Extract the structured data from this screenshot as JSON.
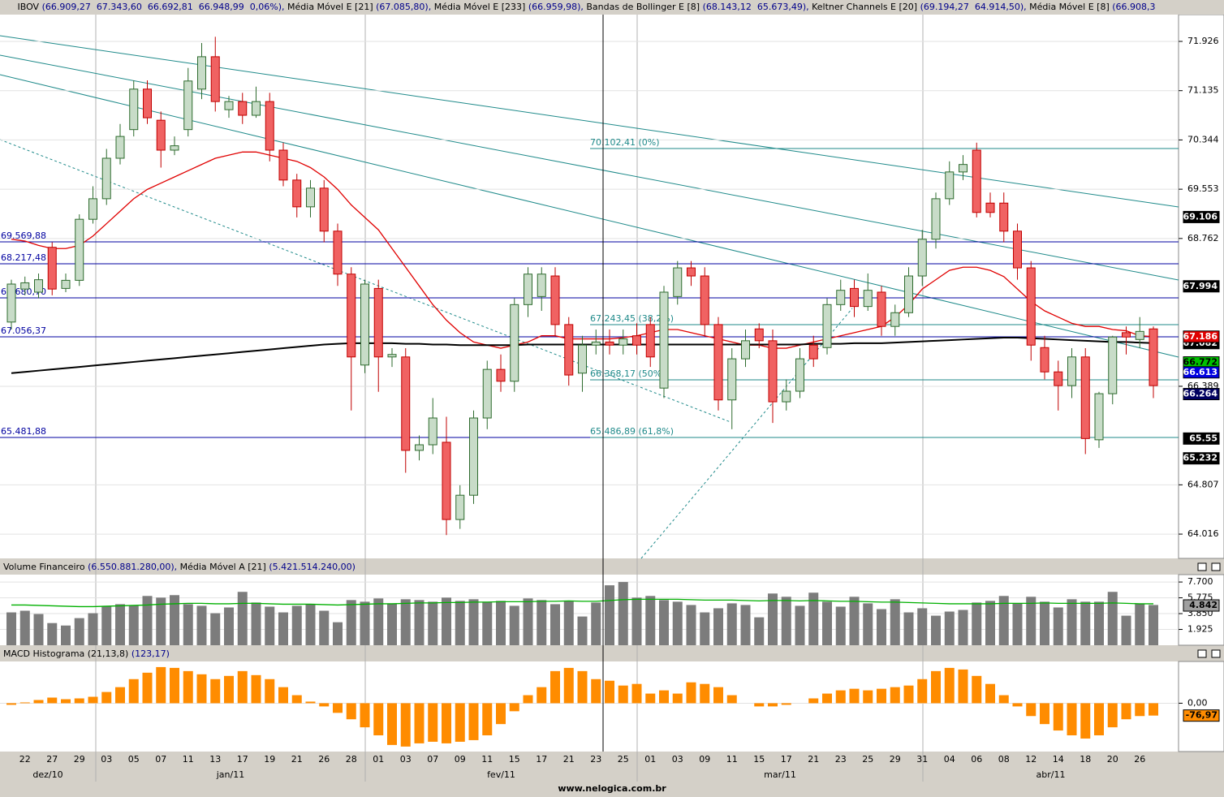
{
  "header": {
    "items": [
      {
        "name": "IBOV",
        "values": "(66.909,27  67.343,60  66.692,81  66.948,99  0,06%),"
      },
      {
        "name": "Média Móvel E [21]",
        "values": "(67.085,80),"
      },
      {
        "name": "Média Móvel E [233]",
        "values": "(66.959,98),"
      },
      {
        "name": "Bandas de Bollinger E [8]",
        "values": "(68.143,12  65.673,49),"
      },
      {
        "name": "Keltner Channels E [20]",
        "values": "(69.194,27  64.914,50),"
      },
      {
        "name": "Média Móvel E [8]",
        "values": "(66.908,3"
      }
    ],
    "footer": "www.nelogica.com.br"
  },
  "chart_data": [
    {
      "type": "candlestick",
      "up_color": "#c8dcc8",
      "down_color": "#f06262",
      "ylim": [
        63.626,
        72.356
      ],
      "yticks": [
        71.926,
        71.135,
        70.344,
        69.553,
        68.762,
        66.389,
        64.807,
        64.016
      ],
      "grid": true,
      "ohlc": [
        [
          67.42,
          68.1,
          67.3,
          68.03
        ],
        [
          67.95,
          68.15,
          67.85,
          68.05
        ],
        [
          67.9,
          68.2,
          67.8,
          68.1
        ],
        [
          68.62,
          68.7,
          67.85,
          67.95
        ],
        [
          67.96,
          68.2,
          67.9,
          68.09
        ],
        [
          68.09,
          69.15,
          68.0,
          69.07
        ],
        [
          69.07,
          69.6,
          69.0,
          69.4
        ],
        [
          69.4,
          70.2,
          69.3,
          70.05
        ],
        [
          70.05,
          70.6,
          69.95,
          70.4
        ],
        [
          70.51,
          71.3,
          70.4,
          71.16
        ],
        [
          71.16,
          71.3,
          70.6,
          70.7
        ],
        [
          70.66,
          70.8,
          69.9,
          70.18
        ],
        [
          70.18,
          70.4,
          70.1,
          70.25
        ],
        [
          70.51,
          71.5,
          70.4,
          71.29
        ],
        [
          71.16,
          71.9,
          71.0,
          71.68
        ],
        [
          71.68,
          72.0,
          70.8,
          70.96
        ],
        [
          70.83,
          71.05,
          70.7,
          70.96
        ],
        [
          70.96,
          71.1,
          70.6,
          70.74
        ],
        [
          70.74,
          71.2,
          70.7,
          70.96
        ],
        [
          70.96,
          71.1,
          70.0,
          70.18
        ],
        [
          70.18,
          70.3,
          69.6,
          69.7
        ],
        [
          69.7,
          69.8,
          69.1,
          69.27
        ],
        [
          69.27,
          69.7,
          69.1,
          69.57
        ],
        [
          69.57,
          69.7,
          68.7,
          68.88
        ],
        [
          68.88,
          69.0,
          68.0,
          68.19
        ],
        [
          68.19,
          68.3,
          66.0,
          66.86
        ],
        [
          66.73,
          68.1,
          66.6,
          68.03
        ],
        [
          67.96,
          68.1,
          66.3,
          66.86
        ],
        [
          66.86,
          67.0,
          66.7,
          66.9
        ],
        [
          66.86,
          67.0,
          65.0,
          65.36
        ],
        [
          65.36,
          65.6,
          65.2,
          65.45
        ],
        [
          65.45,
          66.2,
          65.3,
          65.88
        ],
        [
          65.49,
          65.9,
          64.0,
          64.25
        ],
        [
          64.25,
          64.8,
          64.1,
          64.64
        ],
        [
          64.64,
          66.0,
          64.5,
          65.88
        ],
        [
          65.88,
          66.8,
          65.7,
          66.66
        ],
        [
          66.66,
          66.9,
          66.3,
          66.47
        ],
        [
          66.47,
          67.8,
          66.3,
          67.7
        ],
        [
          67.7,
          68.3,
          67.5,
          68.19
        ],
        [
          67.83,
          68.3,
          67.6,
          68.19
        ],
        [
          68.16,
          68.3,
          67.2,
          67.38
        ],
        [
          67.38,
          67.5,
          66.4,
          66.57
        ],
        [
          66.6,
          67.2,
          66.3,
          67.05
        ],
        [
          67.05,
          67.3,
          66.9,
          67.1
        ],
        [
          67.1,
          67.3,
          66.9,
          67.05
        ],
        [
          67.05,
          67.3,
          66.9,
          67.15
        ],
        [
          67.2,
          67.4,
          66.9,
          67.05
        ],
        [
          67.38,
          67.5,
          66.7,
          66.86
        ],
        [
          66.36,
          68.0,
          66.2,
          67.9
        ],
        [
          67.83,
          68.4,
          67.7,
          68.29
        ],
        [
          68.29,
          68.4,
          68.0,
          68.16
        ],
        [
          68.16,
          68.3,
          67.2,
          67.38
        ],
        [
          67.38,
          67.5,
          66.0,
          66.17
        ],
        [
          66.17,
          67.0,
          65.7,
          66.83
        ],
        [
          66.83,
          67.3,
          66.7,
          67.12
        ],
        [
          67.31,
          67.4,
          67.0,
          67.12
        ],
        [
          67.12,
          67.3,
          65.8,
          66.14
        ],
        [
          66.14,
          66.5,
          66.0,
          66.31
        ],
        [
          66.31,
          67.0,
          66.2,
          66.83
        ],
        [
          67.05,
          67.2,
          66.7,
          66.83
        ],
        [
          67.01,
          67.8,
          66.9,
          67.7
        ],
        [
          67.7,
          68.1,
          67.6,
          67.93
        ],
        [
          67.96,
          68.1,
          67.5,
          67.67
        ],
        [
          67.67,
          68.2,
          67.6,
          67.93
        ],
        [
          67.9,
          68.0,
          67.2,
          67.35
        ],
        [
          67.35,
          67.7,
          67.2,
          67.57
        ],
        [
          67.57,
          68.3,
          67.5,
          68.16
        ],
        [
          68.16,
          68.9,
          68.0,
          68.75
        ],
        [
          68.75,
          69.5,
          68.6,
          69.4
        ],
        [
          69.4,
          70.0,
          69.3,
          69.83
        ],
        [
          69.83,
          70.1,
          69.7,
          69.95
        ],
        [
          70.18,
          70.3,
          69.1,
          69.18
        ],
        [
          69.33,
          69.5,
          69.1,
          69.18
        ],
        [
          69.33,
          69.5,
          68.7,
          68.88
        ],
        [
          68.88,
          69.0,
          68.1,
          68.29
        ],
        [
          68.29,
          68.4,
          66.8,
          67.05
        ],
        [
          67.01,
          67.2,
          66.5,
          66.62
        ],
        [
          66.62,
          66.8,
          66.0,
          66.4
        ],
        [
          66.4,
          67.0,
          66.2,
          66.86
        ],
        [
          66.86,
          67.0,
          65.3,
          65.55
        ],
        [
          65.53,
          66.3,
          65.4,
          66.27
        ],
        [
          66.27,
          67.2,
          66.1,
          67.18
        ],
        [
          67.25,
          67.35,
          66.9,
          67.18
        ],
        [
          67.14,
          67.5,
          67.0,
          67.27
        ],
        [
          67.31,
          67.35,
          66.2,
          66.4
        ]
      ],
      "series": [
        {
          "color": "#e00000",
          "values": [
            68.75,
            68.72,
            68.65,
            68.6,
            68.6,
            68.65,
            68.8,
            69.0,
            69.2,
            69.4,
            69.55,
            69.65,
            69.75,
            69.85,
            69.95,
            70.05,
            70.1,
            70.15,
            70.15,
            70.1,
            70.05,
            70.0,
            69.9,
            69.75,
            69.55,
            69.3,
            69.1,
            68.9,
            68.6,
            68.3,
            68.0,
            67.7,
            67.45,
            67.25,
            67.1,
            67.05,
            67.0,
            67.05,
            67.1,
            67.2,
            67.2,
            67.15,
            67.15,
            67.15,
            67.15,
            67.17,
            67.2,
            67.25,
            67.3,
            67.3,
            67.25,
            67.2,
            67.15,
            67.1,
            67.05,
            67.05,
            67.0,
            67.0,
            67.05,
            67.1,
            67.15,
            67.2,
            67.25,
            67.3,
            67.35,
            67.5,
            67.7,
            67.95,
            68.1,
            68.25,
            68.3,
            68.3,
            68.25,
            68.15,
            67.95,
            67.75,
            67.6,
            67.5,
            67.4,
            67.35,
            67.35,
            67.3,
            67.28,
            67.2,
            67.186
          ]
        },
        {
          "color": "#000000",
          "values": [
            66.6,
            66.62,
            66.64,
            66.66,
            66.68,
            66.7,
            66.72,
            66.74,
            66.76,
            66.78,
            66.8,
            66.82,
            66.84,
            66.86,
            66.88,
            66.9,
            66.92,
            66.94,
            66.96,
            66.98,
            67.0,
            67.02,
            67.04,
            67.06,
            67.07,
            67.08,
            67.08,
            67.08,
            67.08,
            67.07,
            67.07,
            67.06,
            67.06,
            67.05,
            67.05,
            67.05,
            67.05,
            67.05,
            67.06,
            67.06,
            67.06,
            67.06,
            67.06,
            67.06,
            67.06,
            67.06,
            67.06,
            67.06,
            67.06,
            67.06,
            67.06,
            67.06,
            67.06,
            67.06,
            67.06,
            67.06,
            67.06,
            67.06,
            67.06,
            67.07,
            67.07,
            67.07,
            67.08,
            67.08,
            67.08,
            67.09,
            67.1,
            67.11,
            67.12,
            67.13,
            67.14,
            67.15,
            67.16,
            67.17,
            67.17,
            67.16,
            67.15,
            67.14,
            67.13,
            67.12,
            67.11,
            67.1,
            67.1,
            67.09,
            67.082
          ]
        }
      ],
      "badges": [
        {
          "value": 69.106,
          "color": "#000000"
        },
        {
          "value": 67.994,
          "color": "#000000"
        },
        {
          "value": 67.082,
          "color": "#000000"
        },
        {
          "value": 67.186,
          "color": "#e00000"
        },
        {
          "value": 66.772,
          "color": "#00c000"
        },
        {
          "value": 66.613,
          "color": "#0000e0"
        },
        {
          "value": 66.264,
          "color": "#000060"
        },
        {
          "value": 65.55,
          "color": "#000000"
        },
        {
          "value": 65.232,
          "color": "#000000"
        }
      ],
      "annotations": [
        "69.569,88",
        "68.217,48",
        "67.680,70",
        "67.056,37",
        "65.481,88",
        "70.102,41 (0%)",
        "67.243,45 (38,2%)",
        "66.368,17 (50%)",
        "65.486,89 (61,8%)"
      ]
    },
    {
      "type": "bar",
      "title": "Volume Financeiro",
      "title_value": "(6.550.881.280,00),",
      "subtitle": "Média Móvel A [21]",
      "subtitle_value": "(5.421.514.240,00)",
      "color": "#7c7c7c",
      "ylim": [
        0,
        8.6
      ],
      "yticks": [
        {
          "value": 7.7,
          "label": "7.700"
        },
        5.775,
        {
          "value": 3.85,
          "label": "3.850"
        },
        1.925
      ],
      "values": [
        4.0,
        4.2,
        3.8,
        2.7,
        2.4,
        3.3,
        3.9,
        4.8,
        5.0,
        4.8,
        6.0,
        5.8,
        6.1,
        5.0,
        4.8,
        3.9,
        4.6,
        6.5,
        5.2,
        4.7,
        4.0,
        4.8,
        5.0,
        4.2,
        2.8,
        5.5,
        5.3,
        5.7,
        5.1,
        5.6,
        5.5,
        5.3,
        5.8,
        5.4,
        5.6,
        5.3,
        5.4,
        4.8,
        5.7,
        5.5,
        5.0,
        5.4,
        3.5,
        5.2,
        7.3,
        7.7,
        5.8,
        6.0,
        5.5,
        5.3,
        4.9,
        4.0,
        4.5,
        5.1,
        4.9,
        3.4,
        6.3,
        5.9,
        4.8,
        6.4,
        5.3,
        4.7,
        5.9,
        5.1,
        4.4,
        5.6,
        4.0,
        4.5,
        3.6,
        4.1,
        4.3,
        5.2,
        5.4,
        6.0,
        5.1,
        5.9,
        5.3,
        4.6,
        5.6,
        5.3,
        5.3,
        6.5,
        3.6,
        5.0,
        4.9
      ],
      "series": [
        {
          "color": "#00b000",
          "values": [
            4.9,
            4.9,
            4.85,
            4.8,
            4.75,
            4.7,
            4.7,
            4.75,
            4.8,
            4.85,
            4.9,
            5.0,
            5.05,
            5.1,
            5.1,
            5.05,
            5.05,
            5.1,
            5.1,
            5.05,
            5.0,
            5.0,
            5.0,
            4.95,
            4.9,
            4.95,
            5.0,
            5.05,
            5.05,
            5.1,
            5.15,
            5.15,
            5.2,
            5.2,
            5.25,
            5.25,
            5.3,
            5.3,
            5.3,
            5.35,
            5.35,
            5.4,
            5.35,
            5.35,
            5.45,
            5.55,
            5.6,
            5.6,
            5.6,
            5.6,
            5.55,
            5.5,
            5.5,
            5.5,
            5.45,
            5.4,
            5.45,
            5.45,
            5.4,
            5.45,
            5.4,
            5.35,
            5.35,
            5.3,
            5.25,
            5.25,
            5.2,
            5.15,
            5.1,
            5.05,
            5.05,
            5.05,
            5.05,
            5.1,
            5.1,
            5.1,
            5.15,
            5.1,
            5.1,
            5.1,
            5.1,
            5.15,
            5.1,
            5.05,
            5.05
          ]
        }
      ],
      "badges": [
        {
          "value": 4.842,
          "color": "#a0a0a0"
        }
      ]
    },
    {
      "type": "bar",
      "title": "MACD Histograma (21,13,8)",
      "title_value": "(123,17)",
      "color": "#ff8c00",
      "ylim": [
        -301,
        260
      ],
      "yticks": [
        {
          "value": 0,
          "label": "0,00"
        }
      ],
      "values": [
        -10,
        5,
        20,
        35,
        25,
        30,
        40,
        70,
        100,
        150,
        190,
        225,
        220,
        200,
        180,
        150,
        170,
        200,
        175,
        150,
        100,
        50,
        10,
        -20,
        -60,
        -100,
        -150,
        -200,
        -260,
        -270,
        -250,
        -240,
        -250,
        -240,
        -230,
        -200,
        -130,
        -50,
        50,
        100,
        200,
        220,
        200,
        150,
        140,
        110,
        120,
        60,
        80,
        60,
        130,
        120,
        100,
        50,
        0,
        -20,
        -20,
        -10,
        0,
        30,
        60,
        80,
        90,
        80,
        90,
        100,
        110,
        150,
        200,
        220,
        210,
        170,
        120,
        50,
        -20,
        -80,
        -130,
        -170,
        -200,
        -220,
        -200,
        -150,
        -100,
        -80,
        -76.97
      ],
      "badges": [
        {
          "value": -76.97,
          "label": "-76,97",
          "color": "#ff8c00"
        }
      ],
      "categories": [
        null,
        "22",
        null,
        "27",
        null,
        "29",
        null,
        "03",
        null,
        "05",
        null,
        "07",
        null,
        "11",
        null,
        "13",
        null,
        "17",
        null,
        "19",
        null,
        "21",
        null,
        "26",
        null,
        "28",
        null,
        "01",
        null,
        "03",
        null,
        "07",
        null,
        "09",
        null,
        "11",
        null,
        "15",
        null,
        "17",
        null,
        "21",
        null,
        "23",
        null,
        "25",
        null,
        "01",
        null,
        "03",
        null,
        "09",
        null,
        "11",
        null,
        "15",
        null,
        "17",
        null,
        "21",
        null,
        "23",
        null,
        "25",
        null,
        "29",
        null,
        "31",
        null,
        "04",
        null,
        "06",
        null,
        "08",
        null,
        "12",
        null,
        "14",
        null,
        "18",
        null,
        "20",
        null,
        "26",
        null
      ],
      "months": [
        "dez/10",
        "jan/11",
        "fev/11",
        "mar/11",
        "abr/11"
      ]
    }
  ]
}
